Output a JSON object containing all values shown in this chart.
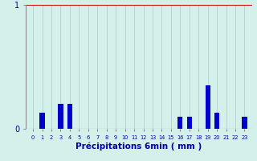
{
  "categories": [
    0,
    1,
    2,
    3,
    4,
    5,
    6,
    7,
    8,
    9,
    10,
    11,
    12,
    13,
    14,
    15,
    16,
    17,
    18,
    19,
    20,
    21,
    22,
    23
  ],
  "values": [
    0,
    0.13,
    0,
    0.2,
    0.2,
    0,
    0,
    0,
    0,
    0,
    0,
    0,
    0,
    0,
    0,
    0,
    0.1,
    0.1,
    0,
    0.35,
    0.13,
    0,
    0,
    0.1
  ],
  "bar_color": "#0000cc",
  "bg_color": "#d4f0eb",
  "plot_bg_color": "#d4f0eb",
  "grid_color": "#b0c8c4",
  "xlabel": "Précipitations 6min ( mm )",
  "ylim": [
    0,
    1.0
  ],
  "yticks": [
    0,
    1
  ],
  "xtick_labels": [
    "0",
    "1",
    "2",
    "3",
    "4",
    "5",
    "6",
    "7",
    "8",
    "9",
    "10",
    "11",
    "12",
    "13",
    "14",
    "15",
    "16",
    "17",
    "18",
    "19",
    "20",
    "21",
    "22",
    "23"
  ],
  "hline_y": 1.0,
  "hline_color": "#cc0000",
  "xlabel_color": "#0000aa",
  "tick_color": "#0000aa",
  "bar_width": 0.55,
  "axis_color": "#888888"
}
